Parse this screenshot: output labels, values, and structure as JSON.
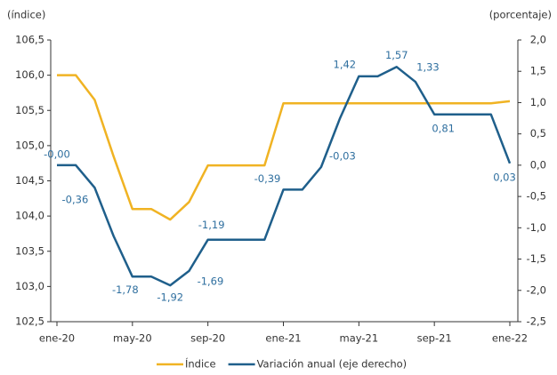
{
  "chart_data": {
    "type": "line",
    "y_label": "(índice)",
    "y2_label": "(porcentaje)",
    "categories": [
      "ene-20",
      null,
      null,
      null,
      "may-20",
      null,
      null,
      null,
      "sep-20",
      null,
      null,
      null,
      "ene-21",
      null,
      null,
      null,
      "may-21",
      null,
      null,
      null,
      "sep-21",
      null,
      null,
      null,
      "ene-22"
    ],
    "series": [
      {
        "name": "Índice",
        "color": "#f0b323",
        "values": [
          106.0,
          106.0,
          105.65,
          104.85,
          104.1,
          104.1,
          103.95,
          104.2,
          104.72,
          104.72,
          104.72,
          104.72,
          105.6,
          105.6,
          105.6,
          105.6,
          105.6,
          105.6,
          105.6,
          105.6,
          105.6,
          105.6,
          105.6,
          105.6,
          105.63
        ]
      },
      {
        "name": "Variación anual (eje derecho)",
        "color": "#1f5f8b",
        "axis": "y2",
        "values": [
          0,
          0,
          -0.36,
          -1.13,
          -1.78,
          -1.78,
          -1.92,
          -1.69,
          -1.19,
          -1.19,
          -1.19,
          -1.19,
          -0.39,
          -0.39,
          -0.03,
          0.75,
          1.42,
          1.42,
          1.57,
          1.33,
          0.81,
          0.81,
          0.81,
          0.81,
          0.03
        ],
        "value_labels": [
          "-0,00",
          null,
          "-0,36",
          null,
          "-1,78",
          null,
          "-1,92",
          "-1,69",
          "-1,19",
          null,
          null,
          null,
          "-0,39",
          null,
          "-0,03",
          null,
          "1,42",
          null,
          "1,57",
          "1,33",
          "0,81",
          null,
          null,
          null,
          "0,03"
        ]
      }
    ],
    "ylim": [
      102.5,
      106.5
    ],
    "yticks": [
      {
        "value": 102.5,
        "label": "102,5"
      },
      {
        "value": 103.0,
        "label": "103,0"
      },
      {
        "value": 103.5,
        "label": "103,5"
      },
      {
        "value": 104.0,
        "label": "104,0"
      },
      {
        "value": 104.5,
        "label": "104,5"
      },
      {
        "value": 105.0,
        "label": "105,0"
      },
      {
        "value": 105.5,
        "label": "105,5"
      },
      {
        "value": 106.0,
        "label": "106,0"
      },
      {
        "value": 106.5,
        "label": "106,5"
      }
    ],
    "y2lim": [
      -2.5,
      2.0
    ],
    "y2ticks": [
      {
        "value": -2.5,
        "label": "-2,5"
      },
      {
        "value": -2.0,
        "label": "-2,0"
      },
      {
        "value": -1.5,
        "label": "-1,5"
      },
      {
        "value": -1.0,
        "label": "-1,0"
      },
      {
        "value": -0.5,
        "label": "-0,5"
      },
      {
        "value": 0.0,
        "label": "0,0"
      },
      {
        "value": 0.5,
        "label": "0,5"
      },
      {
        "value": 1.0,
        "label": "1,0"
      },
      {
        "value": 1.5,
        "label": "1,5"
      },
      {
        "value": 2.0,
        "label": "2,0"
      }
    ],
    "legend": "bottom"
  }
}
